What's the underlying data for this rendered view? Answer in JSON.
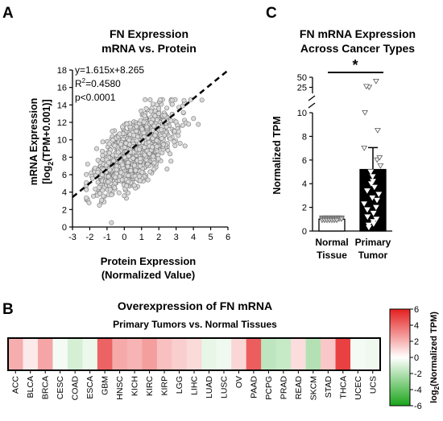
{
  "panel_letters": {
    "a": "A",
    "b": "B",
    "c": "C"
  },
  "chart_data": [
    {
      "id": "A",
      "type": "scatter",
      "title": [
        "FN Expression",
        "mRNA vs. Protein"
      ],
      "xlabel": [
        "Protein Expression",
        "(Normalized Value)"
      ],
      "ylabel_line1": "mRNA Expression",
      "ylabel_line2": {
        "pre": "[log",
        "sub": "2",
        "post": "(TPM+0.001)]"
      },
      "xlim": [
        -3,
        6
      ],
      "ylim": [
        0,
        18
      ],
      "xticks": [
        -3,
        -2,
        -1,
        0,
        1,
        2,
        3,
        4,
        5,
        6
      ],
      "yticks": [
        0,
        2,
        4,
        6,
        8,
        10,
        12,
        14,
        16,
        18
      ],
      "stats": {
        "equation": "y=1.615x+8.265",
        "r2_pre": "R",
        "r2_sup": "2",
        "r2_post": "=0.4580",
        "p": "p<0.0001"
      },
      "regression": {
        "slope": 1.615,
        "intercept": 8.265,
        "x_range": [
          -3,
          6
        ],
        "style": "dashed"
      },
      "point_style": {
        "fill": "#d9d9d9",
        "stroke": "#7a7a7a"
      },
      "point_cloud": {
        "n_points": 1450,
        "x_center": 0.6,
        "x_sd": 1.05,
        "y_center": 11.2,
        "y_sd": 1.8,
        "x_range": [
          -2.2,
          5.3
        ],
        "y_range": [
          0.5,
          14.6
        ]
      }
    },
    {
      "id": "B",
      "type": "heatmap",
      "title": "Overexpression of FN mRNA",
      "subtitle": "Primary Tumors vs. Normal Tissues",
      "categories": [
        "ACC",
        "BLCA",
        "BRCA",
        "CESC",
        "COAD",
        "ESCA",
        "GBM",
        "HNSC",
        "KICH",
        "KIRC",
        "KIRP",
        "LGG",
        "LIHC",
        "LUAD",
        "LUSC",
        "OV",
        "PAAD",
        "PCPG",
        "PRAD",
        "READ",
        "SKCM",
        "STAD",
        "THCA",
        "UCEC",
        "UCS"
      ],
      "values": [
        2.2,
        0.6,
        2.4,
        -0.3,
        -1.1,
        -0.5,
        4.2,
        2.3,
        2.0,
        2.6,
        1.7,
        1.3,
        1.0,
        -0.6,
        -0.4,
        1.1,
        4.3,
        -1.7,
        -1.5,
        0.9,
        -2.0,
        1.5,
        5.1,
        -0.3,
        -0.4
      ],
      "colorbar": {
        "ticks": [
          6,
          4,
          2,
          0,
          -2,
          -4,
          -6
        ],
        "range": [
          -6,
          6
        ],
        "label_pre": "log",
        "label_sub": "2",
        "label_post": "(Normalized TPM)",
        "colors": {
          "low": "#1aa51a",
          "mid": "#ffffff",
          "high": "#e51f1f"
        }
      }
    },
    {
      "id": "C",
      "type": "bar",
      "title": [
        "FN mRNA Expression",
        "Across Cancer Types"
      ],
      "ylabel": "Normalized TPM",
      "categories": [
        [
          "Normal",
          "Tissue"
        ],
        [
          "Primary",
          "Tumor"
        ]
      ],
      "values": [
        1.0,
        5.2
      ],
      "error_upper": [
        1.05,
        7.05
      ],
      "bar_colors": [
        "#ffffff",
        "#000000"
      ],
      "significance": "*",
      "y_axis_segments": {
        "lower": {
          "range": [
            0,
            10
          ],
          "ticks": [
            0,
            2,
            4,
            6,
            8,
            10
          ]
        },
        "upper": {
          "range": [
            10,
            50
          ],
          "ticks": [
            25,
            50
          ]
        }
      },
      "normal_points": [
        1.0,
        1.0,
        1.0,
        1.0,
        1.0,
        1.0,
        1.0,
        1.0,
        1.0,
        1.0,
        1.0,
        1.0,
        1.0,
        1.0,
        1.0,
        1.0,
        1.0,
        1.0,
        1.0,
        1.0,
        1.0,
        1.0,
        1.0,
        1.0,
        1.0
      ],
      "tumor_points": [
        0.3,
        0.5,
        0.6,
        0.8,
        1.0,
        1.2,
        1.5,
        1.8,
        2.0,
        2.3,
        2.6,
        2.8,
        3.1,
        3.4,
        3.7,
        4.0,
        4.2,
        4.6,
        5.0,
        5.5,
        6.0,
        6.2,
        7.0,
        8.5,
        10.0,
        25.0,
        27.0,
        40.0
      ]
    }
  ]
}
